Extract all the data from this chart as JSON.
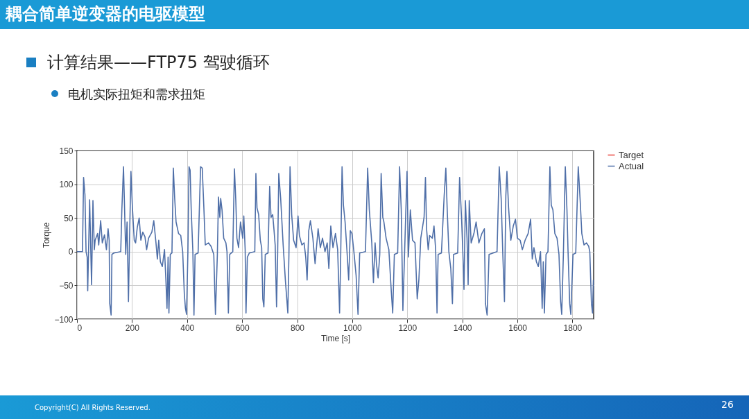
{
  "chart_data": {
    "type": "line",
    "title": "耦合简单逆变器的电驱模型",
    "subtitle": "计算结果——FTP75 驾驶循环",
    "xlabel": "Time [s]",
    "ylabel": "Torque",
    "annotations": [
      "电机实际扭矩和需求扭矩",
      "Copyright(C) All Rights Reserved.",
      "26"
    ],
    "xlim": [
      0,
      1877
    ],
    "xticks": [
      0,
      200,
      400,
      600,
      800,
      1000,
      1200,
      1400,
      1600,
      1800
    ],
    "ylim": [
      -100,
      150
    ],
    "yticks": [
      -100,
      -50,
      0,
      50,
      100,
      150
    ],
    "grid": true,
    "legend": "right",
    "series": [
      {
        "name": "Target",
        "color": "#e8473f"
      },
      {
        "name": "Actual",
        "color": "#4f6fa8",
        "x": [
          0,
          20,
          24,
          29,
          33,
          37,
          39,
          46,
          53,
          58,
          63,
          66,
          75,
          79,
          86,
          92,
          100,
          107,
          113,
          117,
          119,
          124,
          127,
          134,
          159,
          163,
          169,
          172,
          177,
          182,
          187,
          191,
          196,
          201,
          208,
          213,
          219,
          226,
          232,
          239,
          247,
          253,
          260,
          272,
          279,
          287,
          292,
          297,
          303,
          310,
          318,
          323,
          327,
          331,
          334,
          339,
          345,
          350,
          355,
          360,
          369,
          377,
          384,
          390,
          394,
          398,
          403,
          407,
          411,
          415,
          421,
          425,
          429,
          440,
          449,
          455,
          461,
          466,
          478,
          487,
          497,
          503,
          510,
          514,
          519,
          522,
          527,
          533,
          541,
          545,
          550,
          555,
          566,
          572,
          577,
          581,
          587,
          594,
          602,
          606,
          611,
          614,
          619,
          626,
          646,
          650,
          654,
          660,
          666,
          671,
          675,
          679,
          684,
          694,
          700,
          705,
          711,
          716,
          720,
          725,
          729,
          733,
          740,
          749,
          757,
          766,
          770,
          774,
          780,
          787,
          796,
          803,
          808,
          817,
          825,
          831,
          836,
          842,
          848,
          857,
          865,
          876,
          884,
          892,
          901,
          909,
          915,
          922,
          930,
          939,
          947,
          954,
          958,
          963,
          968,
          974,
          981,
          987,
          993,
          999,
          1006,
          1014,
          1021,
          1027,
          1048,
          1056,
          1062,
          1071,
          1077,
          1083,
          1088,
          1094,
          1100,
          1105,
          1111,
          1115,
          1123,
          1133,
          1142,
          1147,
          1153,
          1165,
          1172,
          1178,
          1184,
          1190,
          1199,
          1204,
          1211,
          1219,
          1228,
          1236,
          1242,
          1249,
          1261,
          1266,
          1270,
          1276,
          1281,
          1291,
          1297,
          1303,
          1308,
          1312,
          1324,
          1334,
          1340,
          1345,
          1351,
          1358,
          1364,
          1368,
          1383,
          1390,
          1397,
          1402,
          1406,
          1411,
          1417,
          1421,
          1425,
          1432,
          1442,
          1450,
          1460,
          1471,
          1480,
          1484,
          1490,
          1497,
          1526,
          1534,
          1541,
          1547,
          1553,
          1558,
          1562,
          1568,
          1576,
          1585,
          1593,
          1600,
          1610,
          1618,
          1628,
          1639,
          1648,
          1654,
          1660,
          1669,
          1676,
          1684,
          1690,
          1694,
          1698,
          1704,
          1711,
          1718,
          1723,
          1729,
          1736,
          1744,
          1751,
          1757,
          1761,
          1767,
          1774,
          1780,
          1784,
          1790,
          1794,
          1802,
          1812,
          1821,
          1828,
          1834,
          1842,
          1851,
          1859,
          1863,
          1869,
          1873,
          1876
        ],
        "values": [
          0,
          0,
          110,
          84,
          0,
          -8,
          -58,
          77,
          -49,
          76,
          3,
          17,
          27,
          10,
          46,
          13,
          25,
          3,
          34,
          17,
          -77,
          -94,
          -4,
          -2,
          0,
          62,
          126,
          79,
          -4,
          44,
          -74,
          20,
          119,
          69,
          17,
          13,
          36,
          50,
          17,
          29,
          22,
          3,
          20,
          29,
          46,
          13,
          -11,
          17,
          -15,
          -22,
          3,
          -42,
          -84,
          -8,
          -91,
          -4,
          -2,
          124,
          79,
          44,
          27,
          24,
          0,
          -63,
          -84,
          -93,
          0,
          126,
          121,
          62,
          0,
          -94,
          -4,
          -2,
          126,
          124,
          65,
          10,
          13,
          8,
          -4,
          -93,
          -4,
          81,
          51,
          79,
          62,
          20,
          13,
          0,
          -91,
          -4,
          0,
          123,
          76,
          20,
          6,
          44,
          20,
          53,
          3,
          -91,
          -8,
          -2,
          0,
          116,
          65,
          55,
          17,
          6,
          -70,
          -82,
          -4,
          -2,
          97,
          51,
          55,
          31,
          10,
          -82,
          -4,
          116,
          79,
          10,
          -42,
          -91,
          -4,
          126,
          55,
          17,
          6,
          53,
          24,
          10,
          13,
          -8,
          -42,
          31,
          46,
          20,
          -18,
          34,
          6,
          20,
          0,
          13,
          -25,
          38,
          6,
          27,
          3,
          -91,
          -8,
          126,
          69,
          44,
          0,
          -42,
          31,
          27,
          0,
          -35,
          -93,
          -2,
          0,
          124,
          62,
          13,
          -46,
          13,
          -18,
          -39,
          -4,
          116,
          51,
          44,
          20,
          3,
          -60,
          -91,
          -4,
          -2,
          126,
          62,
          -87,
          -4,
          119,
          -8,
          62,
          17,
          13,
          -70,
          -42,
          20,
          51,
          110,
          34,
          3,
          24,
          20,
          38,
          3,
          -91,
          -4,
          -2,
          83,
          124,
          62,
          0,
          -25,
          -77,
          -4,
          -2,
          110,
          51,
          -4,
          -56,
          76,
          20,
          -49,
          76,
          13,
          27,
          44,
          13,
          27,
          34,
          -77,
          -94,
          -4,
          0,
          126,
          79,
          -4,
          -74,
          83,
          119,
          65,
          17,
          38,
          48,
          20,
          17,
          3,
          17,
          27,
          48,
          -11,
          6,
          -15,
          -22,
          0,
          -84,
          -15,
          -91,
          -4,
          0,
          126,
          69,
          62,
          27,
          20,
          -4,
          -74,
          -93,
          -4,
          126,
          62,
          0,
          -77,
          -93,
          -4,
          -2,
          126,
          76,
          27,
          10,
          13,
          8,
          0,
          -77,
          -91,
          -42
        ]
      }
    ]
  }
}
